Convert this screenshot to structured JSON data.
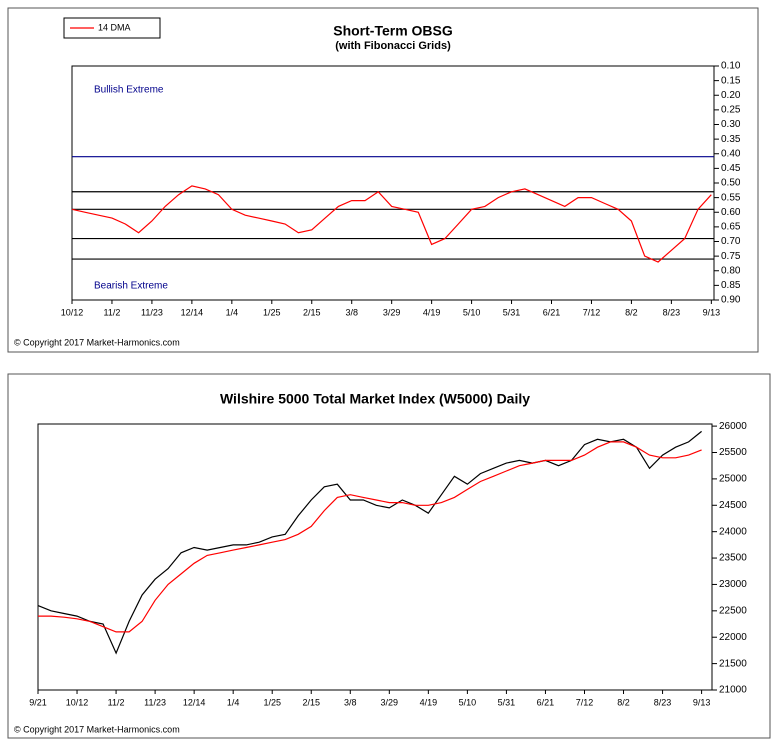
{
  "chart_data": [
    {
      "type": "line",
      "title": "Short-Term OBSG",
      "subtitle": "(with Fibonacci Grids)",
      "annotations": [
        "Bullish Extreme",
        "Bearish Extreme"
      ],
      "copyright": "© Copyright 2017 Market-Harmonics.com",
      "legend": "top-left",
      "x": [
        0,
        1,
        2,
        3,
        4,
        5,
        6,
        7,
        8,
        9,
        10,
        11,
        12,
        13,
        14,
        15,
        16,
        17,
        18,
        19,
        20,
        21,
        22,
        23,
        24,
        25,
        26,
        27,
        28,
        29,
        30,
        31,
        32,
        33,
        34,
        35,
        36,
        37,
        38,
        39,
        40,
        41,
        42,
        43,
        44,
        45,
        46,
        47,
        48
      ],
      "series": [
        {
          "name": "14 DMA",
          "color": "#ff0000",
          "values": [
            0.59,
            0.6,
            0.61,
            0.62,
            0.64,
            0.67,
            0.63,
            0.58,
            0.54,
            0.51,
            0.52,
            0.54,
            0.59,
            0.61,
            0.62,
            0.63,
            0.64,
            0.67,
            0.66,
            0.62,
            0.58,
            0.56,
            0.56,
            0.53,
            0.58,
            0.59,
            0.6,
            0.71,
            0.69,
            0.64,
            0.59,
            0.58,
            0.55,
            0.53,
            0.52,
            0.54,
            0.56,
            0.58,
            0.55,
            0.55,
            0.57,
            0.59,
            0.63,
            0.75,
            0.77,
            0.73,
            0.69,
            0.59,
            0.54
          ]
        }
      ],
      "hlines": [
        {
          "value": 0.41,
          "color": "#00008b"
        },
        {
          "value": 0.53,
          "color": "#000000"
        },
        {
          "value": 0.59,
          "color": "#000000"
        },
        {
          "value": 0.69,
          "color": "#000000"
        },
        {
          "value": 0.76,
          "color": "#000000"
        }
      ],
      "xlim": [
        0,
        48.2
      ],
      "xticks": [
        {
          "value": 0,
          "label": "10/12"
        },
        {
          "value": 3,
          "label": "11/2"
        },
        {
          "value": 6,
          "label": "11/23"
        },
        {
          "value": 9,
          "label": "12/14"
        },
        {
          "value": 12,
          "label": "1/4"
        },
        {
          "value": 15,
          "label": "1/25"
        },
        {
          "value": 18,
          "label": "2/15"
        },
        {
          "value": 21,
          "label": "3/8"
        },
        {
          "value": 24,
          "label": "3/29"
        },
        {
          "value": 27,
          "label": "4/19"
        },
        {
          "value": 30,
          "label": "5/10"
        },
        {
          "value": 33,
          "label": "5/31"
        },
        {
          "value": 36,
          "label": "6/21"
        },
        {
          "value": 39,
          "label": "7/12"
        },
        {
          "value": 42,
          "label": "8/2"
        },
        {
          "value": 45,
          "label": "8/23"
        },
        {
          "value": 48,
          "label": "9/13"
        }
      ],
      "ylim": [
        0.1,
        0.9
      ],
      "y_inverted": true,
      "yticks": [
        {
          "value": 0.1,
          "label": "0.10"
        },
        {
          "value": 0.15,
          "label": "0.15"
        },
        {
          "value": 0.2,
          "label": "0.20"
        },
        {
          "value": 0.25,
          "label": "0.25"
        },
        {
          "value": 0.3,
          "label": "0.30"
        },
        {
          "value": 0.35,
          "label": "0.35"
        },
        {
          "value": 0.4,
          "label": "0.40"
        },
        {
          "value": 0.45,
          "label": "0.45"
        },
        {
          "value": 0.5,
          "label": "0.50"
        },
        {
          "value": 0.55,
          "label": "0.55"
        },
        {
          "value": 0.6,
          "label": "0.60"
        },
        {
          "value": 0.65,
          "label": "0.65"
        },
        {
          "value": 0.7,
          "label": "0.70"
        },
        {
          "value": 0.75,
          "label": "0.75"
        },
        {
          "value": 0.8,
          "label": "0.80"
        },
        {
          "value": 0.85,
          "label": "0.85"
        },
        {
          "value": 0.9,
          "label": "0.90"
        }
      ]
    },
    {
      "type": "line",
      "title": "Wilshire 5000 Total Market Index (W5000) Daily",
      "copyright": "© Copyright 2017 Market-Harmonics.com",
      "x": [
        0,
        1,
        2,
        3,
        4,
        5,
        6,
        7,
        8,
        9,
        10,
        11,
        12,
        13,
        14,
        15,
        16,
        17,
        18,
        19,
        20,
        21,
        22,
        23,
        24,
        25,
        26,
        27,
        28,
        29,
        30,
        31,
        32,
        33,
        34,
        35,
        36,
        37,
        38,
        39,
        40,
        41,
        42,
        43,
        44,
        45,
        46,
        47,
        48,
        49,
        50,
        51
      ],
      "series": [
        {
          "color": "#000000",
          "values": [
            22600,
            22500,
            22450,
            22400,
            22300,
            22250,
            21700,
            22300,
            22800,
            23100,
            23300,
            23600,
            23700,
            23650,
            23700,
            23750,
            23750,
            23800,
            23900,
            23950,
            24300,
            24600,
            24850,
            24900,
            24600,
            24600,
            24500,
            24450,
            24600,
            24500,
            24350,
            24700,
            25050,
            24900,
            25100,
            25200,
            25300,
            25350,
            25300,
            25350,
            25250,
            25350,
            25650,
            25750,
            25700,
            25750,
            25600,
            25200,
            25450,
            25600,
            25700,
            25900
          ]
        },
        {
          "color": "#ff0000",
          "values": [
            22400,
            22400,
            22380,
            22350,
            22300,
            22200,
            22100,
            22100,
            22300,
            22700,
            23000,
            23200,
            23400,
            23550,
            23600,
            23650,
            23700,
            23750,
            23800,
            23850,
            23950,
            24100,
            24400,
            24650,
            24700,
            24650,
            24600,
            24550,
            24550,
            24500,
            24500,
            24550,
            24650,
            24800,
            24950,
            25050,
            25150,
            25250,
            25300,
            25350,
            25350,
            25350,
            25450,
            25600,
            25700,
            25700,
            25600,
            25450,
            25400,
            25400,
            25450,
            25550
          ]
        }
      ],
      "xlim": [
        0,
        51.8
      ],
      "xticks": [
        {
          "value": 0,
          "label": "9/21"
        },
        {
          "value": 3,
          "label": "10/12"
        },
        {
          "value": 6,
          "label": "11/2"
        },
        {
          "value": 9,
          "label": "11/23"
        },
        {
          "value": 12,
          "label": "12/14"
        },
        {
          "value": 15,
          "label": "1/4"
        },
        {
          "value": 18,
          "label": "1/25"
        },
        {
          "value": 21,
          "label": "2/15"
        },
        {
          "value": 24,
          "label": "3/8"
        },
        {
          "value": 27,
          "label": "3/29"
        },
        {
          "value": 30,
          "label": "4/19"
        },
        {
          "value": 33,
          "label": "5/10"
        },
        {
          "value": 36,
          "label": "5/31"
        },
        {
          "value": 39,
          "label": "6/21"
        },
        {
          "value": 42,
          "label": "7/12"
        },
        {
          "value": 45,
          "label": "8/2"
        },
        {
          "value": 48,
          "label": "8/23"
        },
        {
          "value": 51,
          "label": "9/13"
        }
      ],
      "ylim": [
        21000,
        26040
      ],
      "yticks": [
        21000,
        21500,
        22000,
        22500,
        23000,
        23500,
        24000,
        24500,
        25000,
        25500,
        26000
      ]
    }
  ]
}
